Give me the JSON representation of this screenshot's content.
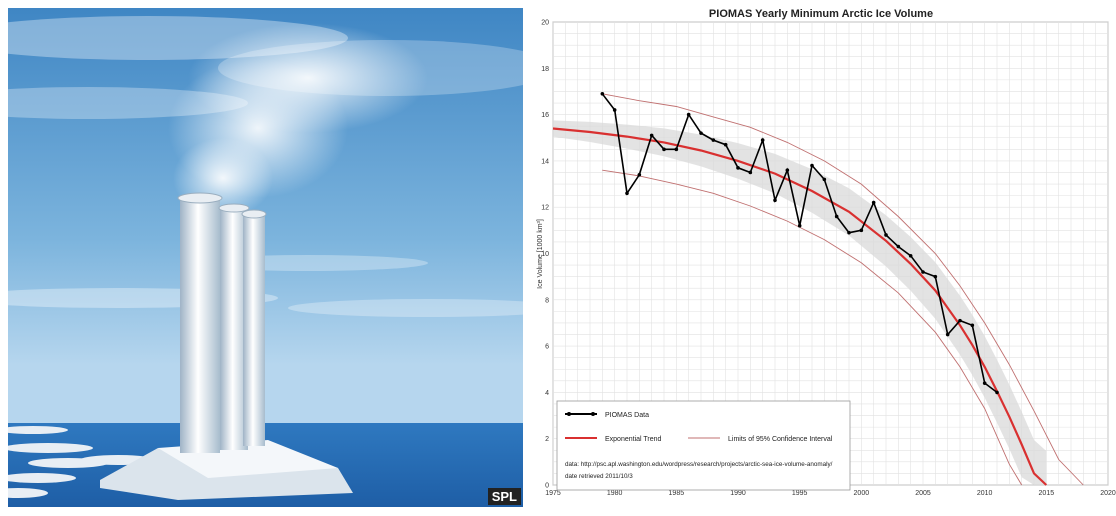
{
  "left_image": {
    "credit": "SPL"
  },
  "chart_data": {
    "type": "line",
    "title": "PIOMAS Yearly Minimum Arctic Ice Volume",
    "xlabel": "",
    "ylabel": "Ice Volume [1000 km³]",
    "xlim": [
      1975,
      2020
    ],
    "ylim": [
      0,
      20
    ],
    "xticks": [
      1975,
      1980,
      1985,
      1990,
      1995,
      2000,
      2005,
      2010,
      2015,
      2020
    ],
    "yticks": [
      0,
      2,
      4,
      6,
      8,
      10,
      12,
      14,
      16,
      18,
      20
    ],
    "grid": true,
    "legend_position": "bottom-left",
    "series": [
      {
        "name": "PIOMAS Data",
        "color": "#000000",
        "style": "line-markers",
        "x": [
          1979,
          1980,
          1981,
          1982,
          1983,
          1984,
          1985,
          1986,
          1987,
          1988,
          1989,
          1990,
          1991,
          1992,
          1993,
          1994,
          1995,
          1996,
          1997,
          1998,
          1999,
          2000,
          2001,
          2002,
          2003,
          2004,
          2005,
          2006,
          2007,
          2008,
          2009,
          2010,
          2011
        ],
        "y": [
          16.9,
          16.2,
          12.6,
          13.4,
          15.1,
          14.5,
          14.5,
          16.0,
          15.2,
          14.9,
          14.7,
          13.7,
          13.5,
          14.9,
          12.3,
          13.6,
          11.2,
          13.8,
          13.2,
          11.6,
          10.9,
          11.0,
          12.2,
          10.8,
          10.3,
          9.9,
          9.2,
          9.0,
          6.5,
          7.1,
          6.9,
          4.4,
          4.0
        ]
      },
      {
        "name": "Exponential Trend",
        "color": "#d93030",
        "style": "line",
        "x": [
          1975,
          1978,
          1981,
          1984,
          1987,
          1990,
          1993,
          1996,
          1999,
          2002,
          2004,
          2006,
          2008,
          2009,
          2010,
          2011,
          2012,
          2013,
          2014,
          2015
        ],
        "y": [
          15.4,
          15.25,
          15.05,
          14.8,
          14.45,
          14.0,
          13.45,
          12.7,
          11.8,
          10.55,
          9.55,
          8.4,
          6.9,
          6.05,
          5.1,
          4.05,
          2.95,
          1.75,
          0.5,
          0.0
        ]
      },
      {
        "name": "Limits of 95% Confidence Interval",
        "color": "#c07070",
        "style": "thin-line",
        "upper": {
          "x": [
            1979,
            1982,
            1985,
            1988,
            1991,
            1994,
            1997,
            2000,
            2003,
            2006,
            2008,
            2010,
            2012,
            2014,
            2016,
            2018
          ],
          "y": [
            16.9,
            16.6,
            16.35,
            15.9,
            15.45,
            14.8,
            14.0,
            13.0,
            11.6,
            10.0,
            8.6,
            7.0,
            5.2,
            3.2,
            1.1,
            0.0
          ]
        },
        "lower": {
          "x": [
            1979,
            1982,
            1985,
            1988,
            1991,
            1994,
            1997,
            2000,
            2003,
            2006,
            2008,
            2010,
            2011,
            2012,
            2013
          ],
          "y": [
            13.6,
            13.35,
            13.0,
            12.6,
            12.05,
            11.4,
            10.6,
            9.6,
            8.3,
            6.6,
            5.1,
            3.3,
            2.1,
            0.9,
            0.0
          ]
        }
      }
    ],
    "annotations": [
      "data: http://psc.apl.washington.edu/wordpress/research/projects/arctic-sea-ice-volume-anomaly/",
      "date retrieved 2011/10/3"
    ]
  }
}
